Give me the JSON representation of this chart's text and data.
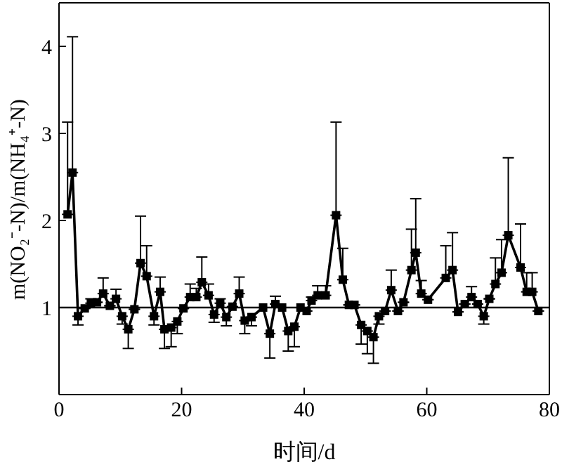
{
  "chart_data": {
    "type": "line",
    "xlabel": "时间/d",
    "ylabel": "m(NO₂⁻-N)/m(NH₄⁺-N)",
    "x": [
      1.4,
      2.2,
      3.1,
      4.2,
      5.2,
      6.2,
      7.2,
      8.3,
      9.3,
      10.3,
      11.3,
      12.3,
      13.3,
      14.3,
      15.5,
      16.5,
      17.2,
      18.3,
      19.3,
      20.3,
      21.4,
      22.4,
      23.3,
      24.4,
      25.3,
      26.3,
      27.3,
      28.3,
      29.4,
      30.3,
      31.4,
      33.3,
      34.4,
      35.3,
      36.4,
      37.4,
      38.4,
      39.4,
      40.4,
      41.2,
      42.2,
      43.5,
      45.2,
      46.3,
      47.3,
      48.2,
      49.3,
      50.3,
      51.3,
      52.2,
      53.2,
      54.2,
      55.3,
      56.2,
      57.5,
      58.2,
      59.1,
      60.2,
      63.1,
      64.2,
      65.1,
      66.2,
      67.3,
      68.3,
      69.3,
      70.2,
      71.2,
      72.2,
      73.3,
      75.3,
      76.3,
      77.2,
      78.2
    ],
    "series": [
      {
        "color": "#000000",
        "values": [
          2.07,
          2.55,
          0.9,
          0.99,
          1.05,
          1.06,
          1.16,
          1.02,
          1.1,
          0.9,
          0.75,
          0.98,
          1.51,
          1.36,
          0.9,
          1.18,
          0.75,
          0.77,
          0.84,
          0.99,
          1.12,
          1.12,
          1.29,
          1.14,
          0.92,
          1.05,
          0.89,
          1.01,
          1.16,
          0.85,
          0.89,
          1.0,
          0.7,
          1.04,
          1.0,
          0.73,
          0.78,
          1.0,
          0.96,
          1.08,
          1.14,
          1.14,
          2.06,
          1.32,
          1.03,
          1.03,
          0.8,
          0.73,
          0.66,
          0.9,
          0.96,
          1.2,
          0.96,
          1.06,
          1.43,
          1.63,
          1.16,
          1.09,
          1.34,
          1.43,
          0.95,
          1.04,
          1.12,
          1.04,
          0.9,
          1.1,
          1.27,
          1.4,
          1.83,
          1.46,
          1.18,
          1.18,
          0.96
        ],
        "errors": [
          [
            2.07,
            3.13
          ],
          [
            2.55,
            4.11
          ],
          [
            0.8,
            0.9
          ],
          null,
          [
            1.05,
            1.1
          ],
          null,
          [
            1.16,
            1.34
          ],
          null,
          [
            1.1,
            1.21
          ],
          [
            0.81,
            0.9
          ],
          [
            0.53,
            0.75
          ],
          null,
          [
            1.51,
            2.05
          ],
          [
            1.36,
            1.71
          ],
          [
            0.8,
            0.9
          ],
          [
            1.18,
            1.35
          ],
          [
            0.53,
            0.75
          ],
          [
            0.55,
            0.77
          ],
          [
            0.7,
            0.84
          ],
          null,
          [
            1.12,
            1.27
          ],
          [
            1.12,
            1.22
          ],
          [
            1.29,
            1.58
          ],
          [
            1.14,
            1.27
          ],
          [
            0.83,
            0.92
          ],
          [
            1.05,
            1.1
          ],
          [
            0.79,
            0.89
          ],
          null,
          [
            1.16,
            1.35
          ],
          [
            0.7,
            0.85
          ],
          [
            0.79,
            0.89
          ],
          null,
          [
            0.42,
            0.7
          ],
          [
            1.04,
            1.13
          ],
          null,
          [
            0.5,
            0.73
          ],
          [
            0.55,
            0.78
          ],
          null,
          null,
          [
            1.08,
            1.12
          ],
          [
            1.14,
            1.25
          ],
          [
            1.14,
            1.25
          ],
          [
            2.06,
            3.13
          ],
          [
            1.32,
            1.68
          ],
          null,
          null,
          [
            0.58,
            0.8
          ],
          [
            0.47,
            0.73
          ],
          [
            0.36,
            0.66
          ],
          [
            0.81,
            0.9
          ],
          null,
          [
            1.2,
            1.43
          ],
          null,
          null,
          [
            1.43,
            1.9
          ],
          [
            1.63,
            2.25
          ],
          [
            1.16,
            1.31
          ],
          null,
          [
            1.34,
            1.71
          ],
          [
            1.43,
            1.86
          ],
          null,
          null,
          [
            1.12,
            1.24
          ],
          null,
          [
            0.81,
            0.9
          ],
          null,
          [
            1.27,
            1.57
          ],
          [
            1.4,
            1.78
          ],
          [
            1.83,
            2.72
          ],
          [
            1.46,
            1.96
          ],
          [
            1.18,
            1.4
          ],
          [
            1.18,
            1.4
          ],
          null
        ]
      }
    ],
    "xlim": [
      0,
      80
    ],
    "xticks": [
      0,
      20,
      40,
      60,
      80
    ],
    "ylim": [
      0,
      4.5
    ],
    "yticks": [
      1,
      2,
      3,
      4
    ],
    "ref_lines": [
      {
        "axis": "y",
        "value": 1,
        "color": "#000000"
      }
    ],
    "marker": "square",
    "line_style": "solid"
  }
}
